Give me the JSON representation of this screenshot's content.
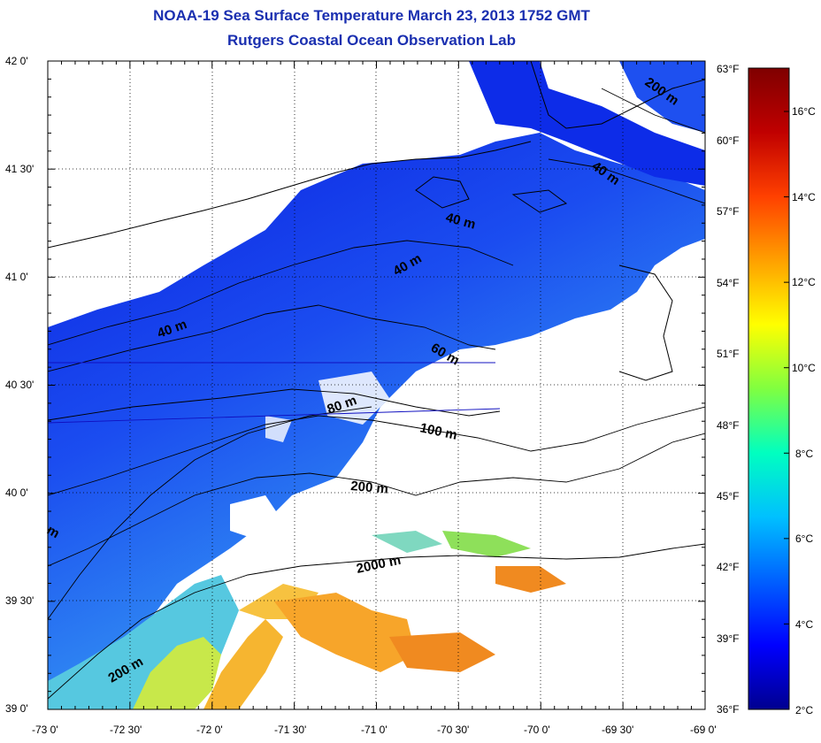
{
  "title": {
    "line1": "NOAA-19 Sea Surface Temperature March 23, 2013 1752 GMT",
    "line2": "Rutgers Coastal Ocean Observation Lab"
  },
  "axes": {
    "lat_labels": [
      "42 0'",
      "41 30'",
      "41 0'",
      "40 30'",
      "40 0'",
      "39 30'",
      "39 0'"
    ],
    "lon_labels": [
      "-73 0'",
      "-72 30'",
      "-72 0'",
      "-71 30'",
      "-71 0'",
      "-70 30'",
      "-70 0'",
      "-69 30'",
      "-69 0'"
    ]
  },
  "fahrenheit_scale": [
    "63°F",
    "60°F",
    "57°F",
    "54°F",
    "51°F",
    "48°F",
    "45°F",
    "42°F",
    "39°F",
    "36°F"
  ],
  "colorbar": {
    "labels": [
      "16°C",
      "14°C",
      "12°C",
      "10°C",
      "8°C",
      "6°C",
      "4°C",
      "2°C"
    ],
    "stops": [
      "#00008f",
      "#0000ff",
      "#0060ff",
      "#00c0ff",
      "#00ffc0",
      "#80ff40",
      "#ffff00",
      "#ffa000",
      "#ff4000",
      "#c00000",
      "#7f0000"
    ]
  },
  "contours": {
    "labels": [
      "200 m",
      "40 m",
      "40 m",
      "40 m",
      "40 m",
      "60 m",
      "80 m",
      "100 m",
      "200 m",
      "2000 m",
      "200 m",
      "m"
    ]
  }
}
